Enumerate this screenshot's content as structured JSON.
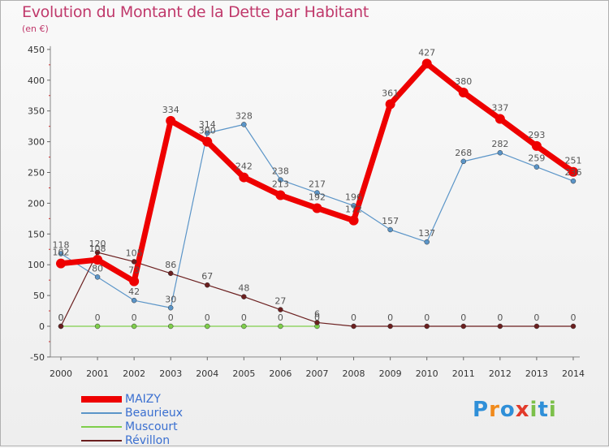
{
  "title": "Evolution du Montant de la Dette par Habitant",
  "unit": "(en €)",
  "logo": "Proxiti",
  "colors": {
    "title": "#c0396b",
    "legend_text": "#3a6fd0"
  },
  "chart_data": {
    "type": "line",
    "x": [
      "2000",
      "2001",
      "2002",
      "2003",
      "2004",
      "2005",
      "2006",
      "2007",
      "2008",
      "2009",
      "2010",
      "2011",
      "2012",
      "2013",
      "2014"
    ],
    "ylim": [
      -50,
      450
    ],
    "yticks": [
      -50,
      0,
      50,
      100,
      150,
      200,
      250,
      300,
      350,
      400,
      450
    ],
    "grid": false,
    "legend": "bottom-left",
    "series": [
      {
        "name": "MAIZY",
        "color": "#ee0000",
        "width": 7,
        "marker": 6,
        "values": [
          102,
          108,
          73,
          334,
          300,
          242,
          213,
          192,
          172,
          361,
          427,
          380,
          337,
          293,
          251
        ]
      },
      {
        "name": "Beaurieux",
        "color": "#5b95c8",
        "width": 1.2,
        "marker": 3,
        "values": [
          118,
          80,
          42,
          30,
          314,
          328,
          238,
          217,
          196,
          157,
          137,
          268,
          282,
          259,
          236
        ]
      },
      {
        "name": "Muscourt",
        "color": "#7fce4b",
        "width": 1.2,
        "marker": 3,
        "values": [
          0,
          0,
          0,
          0,
          0,
          0,
          0,
          0,
          null,
          null,
          null,
          null,
          null,
          null,
          null
        ]
      },
      {
        "name": "Révillon",
        "color": "#6b1f1f",
        "width": 1.2,
        "marker": 3,
        "values": [
          0,
          120,
          105,
          86,
          67,
          48,
          27,
          6,
          0,
          0,
          0,
          0,
          0,
          0,
          0
        ]
      }
    ]
  }
}
